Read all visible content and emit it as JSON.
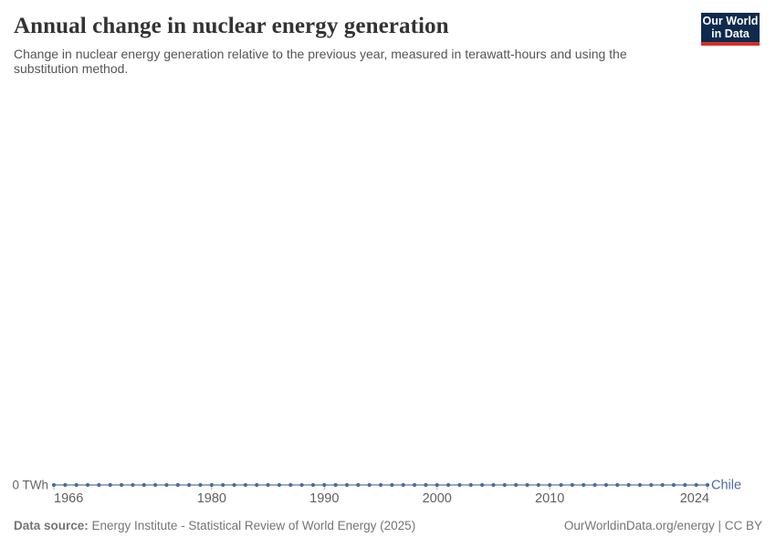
{
  "header": {
    "title": "Annual change in nuclear energy generation",
    "subtitle_lines": [
      "Change in nuclear energy generation relative to the previous year, measured in terawatt-hours and using the",
      "substitution method."
    ]
  },
  "logo": {
    "line1": "Our World",
    "line2": "in Data",
    "bg_color": "#0f2a4e",
    "stripe_color": "#d0312d"
  },
  "chart_data": {
    "type": "line",
    "title": "Annual change in nuclear energy generation",
    "xlabel": "",
    "ylabel": "",
    "unit": "TWh",
    "y_axis_label": "0 TWh",
    "x_range": [
      1966,
      2024
    ],
    "x_ticks": [
      1966,
      1980,
      1990,
      2000,
      2010,
      2024
    ],
    "ylim": [
      0,
      0
    ],
    "grid": false,
    "legend": "inline-end-label",
    "series": [
      {
        "name": "Chile",
        "color": "#4C6A9C",
        "x": [
          1966,
          1967,
          1968,
          1969,
          1970,
          1971,
          1972,
          1973,
          1974,
          1975,
          1976,
          1977,
          1978,
          1979,
          1980,
          1981,
          1982,
          1983,
          1984,
          1985,
          1986,
          1987,
          1988,
          1989,
          1990,
          1991,
          1992,
          1993,
          1994,
          1995,
          1996,
          1997,
          1998,
          1999,
          2000,
          2001,
          2002,
          2003,
          2004,
          2005,
          2006,
          2007,
          2008,
          2009,
          2010,
          2011,
          2012,
          2013,
          2014,
          2015,
          2016,
          2017,
          2018,
          2019,
          2020,
          2021,
          2022,
          2023,
          2024
        ],
        "values": [
          0,
          0,
          0,
          0,
          0,
          0,
          0,
          0,
          0,
          0,
          0,
          0,
          0,
          0,
          0,
          0,
          0,
          0,
          0,
          0,
          0,
          0,
          0,
          0,
          0,
          0,
          0,
          0,
          0,
          0,
          0,
          0,
          0,
          0,
          0,
          0,
          0,
          0,
          0,
          0,
          0,
          0,
          0,
          0,
          0,
          0,
          0,
          0,
          0,
          0,
          0,
          0,
          0,
          0,
          0,
          0,
          0,
          0,
          0
        ]
      }
    ]
  },
  "footer": {
    "source_label": "Data source:",
    "source_text": " Energy Institute - Statistical Review of World Energy (2025)",
    "right_text": "OurWorldinData.org/energy | CC BY"
  }
}
